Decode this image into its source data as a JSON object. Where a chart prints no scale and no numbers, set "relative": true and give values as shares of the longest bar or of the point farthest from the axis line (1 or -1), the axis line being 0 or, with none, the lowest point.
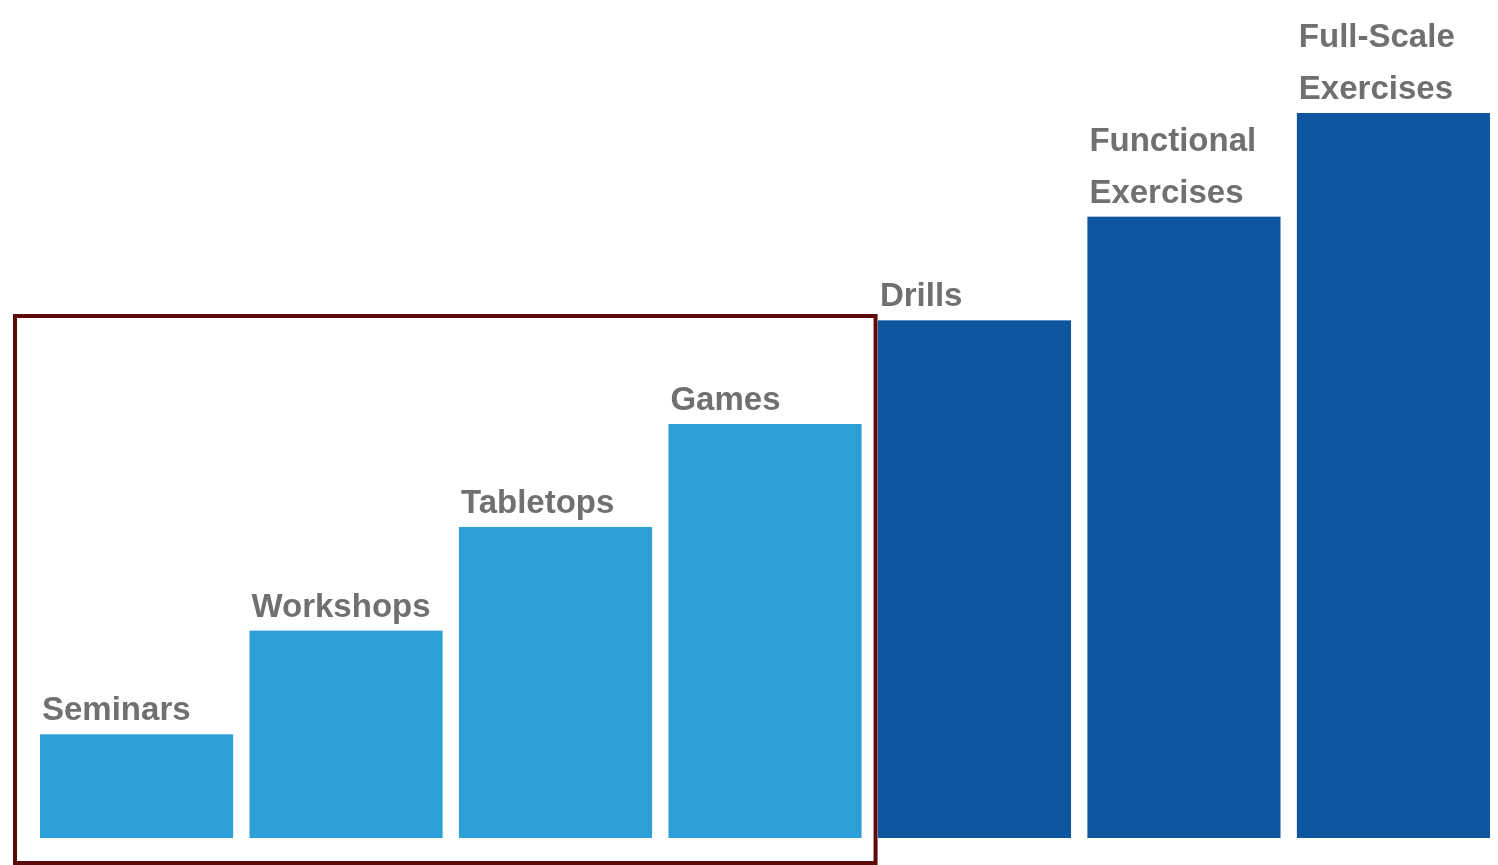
{
  "chart_data": {
    "type": "bar",
    "relative": true,
    "categories": [
      "Seminars",
      "Workshops",
      "Tabletops",
      "Games",
      "Drills",
      "Functional Exercises",
      "Full-Scale Exercises"
    ],
    "values": [
      0.143,
      0.286,
      0.429,
      0.571,
      0.714,
      0.857,
      1
    ],
    "colors": [
      "#2b9fd6",
      "#2b9fd6",
      "#2b9fd6",
      "#2b9fd6",
      "#0f56a0",
      "#0f56a0",
      "#0f56a0"
    ]
  }
}
